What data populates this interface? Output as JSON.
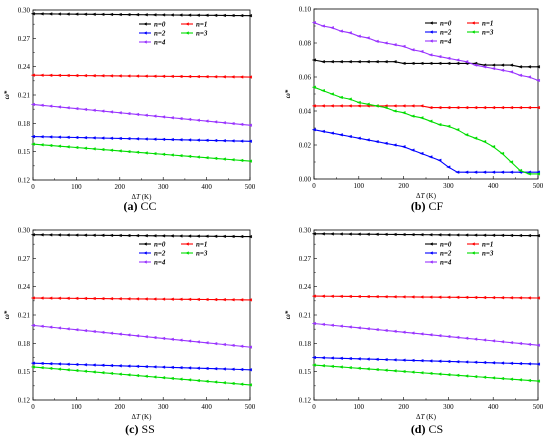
{
  "x_values": [
    0,
    20,
    40,
    60,
    80,
    100,
    120,
    140,
    160,
    180,
    200,
    220,
    240,
    260,
    280,
    300,
    320,
    340,
    360,
    380,
    400,
    420,
    440,
    460,
    480,
    500
  ],
  "colors": {
    "n0": "#000000",
    "n1": "#ff0000",
    "n2": "#0000ff",
    "n3": "#00dd00",
    "n4": "#9933ff"
  },
  "xlabel": "ΔT (K)",
  "ylabel": "ω*",
  "charts": [
    {
      "caption_letter": "(a)",
      "caption_text": "CC",
      "chart_data": {
        "type": "line",
        "xlim": [
          0,
          500
        ],
        "ylim": [
          0.12,
          0.3
        ],
        "xticks": [
          0,
          100,
          200,
          300,
          400,
          500
        ],
        "yticks": [
          "0.12",
          "0.15",
          "0.18",
          "0.21",
          "0.24",
          "0.27",
          "0.30"
        ],
        "legend": [
          "n=0",
          "n=1",
          "n=2",
          "n=3",
          "n=4"
        ],
        "series": [
          {
            "name": "n=0",
            "color_key": "n0",
            "start": 0.296,
            "end": 0.294
          },
          {
            "name": "n=1",
            "color_key": "n1",
            "start": 0.231,
            "end": 0.229
          },
          {
            "name": "n=2",
            "color_key": "n2",
            "start": 0.166,
            "end": 0.161
          },
          {
            "name": "n=3",
            "color_key": "n3",
            "start": 0.158,
            "end": 0.14
          },
          {
            "name": "n=4",
            "color_key": "n4",
            "start": 0.2,
            "end": 0.178
          }
        ]
      }
    },
    {
      "caption_letter": "(b)",
      "caption_text": "CF",
      "chart_data": {
        "type": "line",
        "xlim": [
          0,
          500
        ],
        "ylim": [
          0.0,
          0.1
        ],
        "xticks": [
          0,
          100,
          200,
          300,
          400,
          500
        ],
        "yticks": [
          "0.00",
          "0.02",
          "0.04",
          "0.06",
          "0.08",
          "0.10"
        ],
        "legend": [
          "n=0",
          "n=1",
          "n=2",
          "n=3",
          "n=4"
        ],
        "series": [
          {
            "name": "n=0",
            "color_key": "n0",
            "points": [
              0.07,
              0.069,
              0.069,
              0.069,
              0.069,
              0.069,
              0.069,
              0.069,
              0.069,
              0.069,
              0.068,
              0.068,
              0.068,
              0.068,
              0.068,
              0.068,
              0.068,
              0.068,
              0.068,
              0.067,
              0.067,
              0.067,
              0.067,
              0.066,
              0.066,
              0.066
            ]
          },
          {
            "name": "n=1",
            "color_key": "n1",
            "points": [
              0.043,
              0.043,
              0.043,
              0.043,
              0.043,
              0.043,
              0.043,
              0.043,
              0.043,
              0.043,
              0.043,
              0.043,
              0.043,
              0.042,
              0.042,
              0.042,
              0.042,
              0.042,
              0.042,
              0.042,
              0.042,
              0.042,
              0.042,
              0.042,
              0.042,
              0.042
            ]
          },
          {
            "name": "n=2",
            "color_key": "n2",
            "points": [
              0.029,
              0.028,
              0.027,
              0.026,
              0.025,
              0.024,
              0.023,
              0.022,
              0.021,
              0.02,
              0.019,
              0.017,
              0.015,
              0.013,
              0.011,
              0.007,
              0.004,
              0.004,
              0.004,
              0.004,
              0.004,
              0.004,
              0.004,
              0.004,
              0.004,
              0.004
            ]
          },
          {
            "name": "n=3",
            "color_key": "n3",
            "points": [
              0.054,
              0.052,
              0.05,
              0.048,
              0.047,
              0.045,
              0.044,
              0.043,
              0.042,
              0.04,
              0.039,
              0.037,
              0.036,
              0.034,
              0.032,
              0.031,
              0.029,
              0.026,
              0.024,
              0.022,
              0.019,
              0.015,
              0.01,
              0.005,
              0.003,
              0.003
            ]
          },
          {
            "name": "n=4",
            "color_key": "n4",
            "points": [
              0.092,
              0.09,
              0.089,
              0.087,
              0.086,
              0.084,
              0.083,
              0.081,
              0.08,
              0.079,
              0.078,
              0.076,
              0.075,
              0.073,
              0.072,
              0.071,
              0.07,
              0.069,
              0.067,
              0.066,
              0.065,
              0.064,
              0.063,
              0.061,
              0.06,
              0.058
            ]
          }
        ]
      }
    },
    {
      "caption_letter": "(c)",
      "caption_text": "SS",
      "chart_data": {
        "type": "line",
        "xlim": [
          0,
          500
        ],
        "ylim": [
          0.12,
          0.3
        ],
        "xticks": [
          0,
          100,
          200,
          300,
          400,
          500
        ],
        "yticks": [
          "0.12",
          "0.15",
          "0.18",
          "0.21",
          "0.24",
          "0.27",
          "0.30"
        ],
        "legend": [
          "n=0",
          "n=1",
          "n=2",
          "n=3",
          "n=4"
        ],
        "series": [
          {
            "name": "n=0",
            "color_key": "n0",
            "start": 0.295,
            "end": 0.293
          },
          {
            "name": "n=1",
            "color_key": "n1",
            "start": 0.228,
            "end": 0.226
          },
          {
            "name": "n=2",
            "color_key": "n2",
            "start": 0.159,
            "end": 0.152
          },
          {
            "name": "n=3",
            "color_key": "n3",
            "start": 0.155,
            "end": 0.136
          },
          {
            "name": "n=4",
            "color_key": "n4",
            "start": 0.199,
            "end": 0.176
          }
        ]
      }
    },
    {
      "caption_letter": "(d)",
      "caption_text": "CS",
      "chart_data": {
        "type": "line",
        "xlim": [
          0,
          500
        ],
        "ylim": [
          0.12,
          0.3
        ],
        "xticks": [
          0,
          100,
          200,
          300,
          400,
          500
        ],
        "yticks": [
          "0.12",
          "0.15",
          "0.18",
          "0.21",
          "0.24",
          "0.27",
          "0.30"
        ],
        "legend": [
          "n=0",
          "n=1",
          "n=2",
          "n=3",
          "n=4"
        ],
        "series": [
          {
            "name": "n=0",
            "color_key": "n0",
            "start": 0.296,
            "end": 0.294
          },
          {
            "name": "n=1",
            "color_key": "n1",
            "start": 0.23,
            "end": 0.228
          },
          {
            "name": "n=2",
            "color_key": "n2",
            "start": 0.165,
            "end": 0.158
          },
          {
            "name": "n=3",
            "color_key": "n3",
            "start": 0.157,
            "end": 0.14
          },
          {
            "name": "n=4",
            "color_key": "n4",
            "start": 0.201,
            "end": 0.178
          }
        ]
      }
    }
  ]
}
